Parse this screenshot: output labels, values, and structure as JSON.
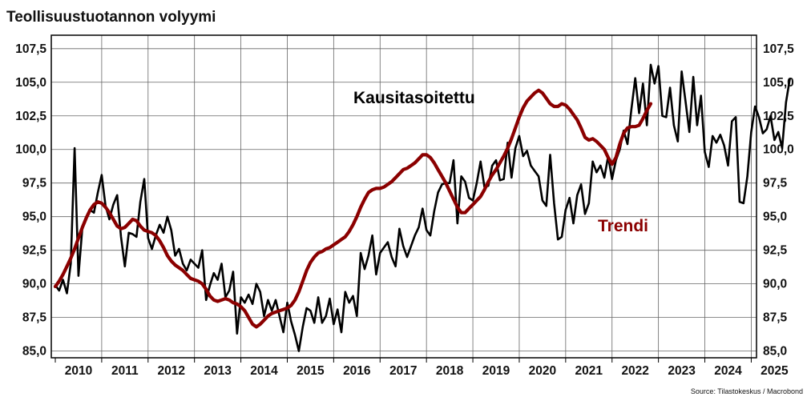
{
  "chart_data": {
    "type": "line",
    "title": "Teollisuustuotannon volyymi",
    "source": "Source: Tilastokeskus / Macrobond",
    "ylim": [
      84.5,
      108.5
    ],
    "y_ticks": [
      "85,0",
      "87,5",
      "90,0",
      "92,5",
      "95,0",
      "97,5",
      "100,0",
      "102,5",
      "105,0",
      "107,5"
    ],
    "y_tick_values": [
      85,
      87.5,
      90,
      92.5,
      95,
      97.5,
      100,
      102.5,
      105,
      107.5
    ],
    "x_ticks": [
      "2010",
      "2011",
      "2012",
      "2013",
      "2014",
      "2015",
      "2016",
      "2017",
      "2018",
      "2019",
      "2020",
      "2021",
      "2022",
      "2023",
      "2024",
      "2025"
    ],
    "x_start": "2010-01",
    "frequency": "monthly",
    "grid": true,
    "colors": {
      "seasonal": "#000000",
      "trend": "#8b0000",
      "grid": "#666666"
    },
    "annotations": [
      {
        "text": "Kausitasoitettu",
        "series": "seasonal"
      },
      {
        "text": "Trendi",
        "series": "trend"
      }
    ],
    "series": [
      {
        "name": "Kausitasoitettu",
        "values": [
          89.9,
          89.5,
          90.3,
          89.3,
          91.5,
          100.1,
          90.6,
          94.2,
          95.0,
          95.5,
          95.3,
          96.8,
          98.1,
          95.8,
          94.8,
          95.9,
          96.6,
          93.5,
          91.3,
          93.8,
          93.7,
          93.5,
          96.1,
          97.8,
          93.4,
          92.6,
          93.6,
          94.4,
          93.8,
          95.0,
          94.0,
          92.1,
          92.6,
          91.5,
          91.0,
          91.8,
          91.5,
          91.2,
          92.5,
          88.8,
          89.9,
          90.8,
          90.3,
          91.5,
          89.0,
          89.5,
          90.9,
          86.3,
          89.0,
          88.6,
          89.2,
          88.5,
          90.0,
          89.4,
          87.6,
          88.8,
          88.0,
          88.8,
          87.6,
          86.4,
          88.6,
          87.2,
          86.2,
          85.0,
          86.8,
          88.2,
          88.0,
          87.1,
          89.0,
          87.1,
          87.6,
          88.9,
          87.0,
          88.1,
          86.4,
          89.4,
          88.6,
          89.1,
          87.6,
          92.3,
          91.1,
          92.1,
          93.6,
          90.7,
          92.3,
          92.7,
          93.1,
          92.0,
          91.3,
          94.1,
          92.8,
          92.0,
          92.8,
          93.6,
          94.2,
          95.6,
          94.0,
          93.6,
          95.4,
          96.8,
          97.4,
          97.5,
          97.5,
          99.2,
          94.5,
          98.0,
          97.6,
          96.4,
          96.2,
          97.5,
          99.1,
          97.2,
          97.3,
          98.8,
          99.2,
          97.7,
          97.8,
          100.5,
          97.9,
          100.1,
          101.0,
          99.5,
          99.9,
          98.8,
          98.4,
          98.0,
          96.2,
          95.8,
          99.6,
          96.0,
          93.3,
          93.5,
          95.5,
          96.4,
          94.5,
          96.6,
          97.4,
          95.2,
          96.0,
          99.1,
          98.3,
          98.8,
          97.9,
          99.5,
          97.8,
          99.2,
          100.0,
          101.4,
          100.4,
          103.0,
          105.3,
          102.7,
          104.9,
          101.8,
          106.3,
          104.9,
          106.2,
          102.5,
          102.4,
          104.6,
          101.8,
          100.6,
          105.8,
          103.6,
          101.3,
          105.4,
          101.8,
          104.0,
          99.8,
          98.7,
          101.0,
          100.5,
          101.1,
          100.3,
          98.8,
          102.1,
          102.4,
          96.1,
          96.0,
          98.0,
          101.3,
          103.2,
          102.4,
          101.2,
          101.5,
          102.5,
          100.7,
          101.3,
          100.1,
          103.5,
          105.3
        ]
      },
      {
        "name": "Trendi",
        "values": [
          89.8,
          90.2,
          90.7,
          91.3,
          91.9,
          92.6,
          93.4,
          94.2,
          94.9,
          95.5,
          95.9,
          96.1,
          96.0,
          95.7,
          95.3,
          94.8,
          94.3,
          94.1,
          94.2,
          94.5,
          94.8,
          94.7,
          94.3,
          94.0,
          93.9,
          93.8,
          93.6,
          93.2,
          92.7,
          92.1,
          91.7,
          91.4,
          91.2,
          91.0,
          90.7,
          90.4,
          90.3,
          90.2,
          90.0,
          89.6,
          89.1,
          88.8,
          88.7,
          88.8,
          88.9,
          88.8,
          88.6,
          88.5,
          88.3,
          88.0,
          87.5,
          87.0,
          86.8,
          87.0,
          87.3,
          87.6,
          87.8,
          87.9,
          88.0,
          88.1,
          88.2,
          88.4,
          88.8,
          89.4,
          90.2,
          91.0,
          91.6,
          92.0,
          92.3,
          92.4,
          92.6,
          92.7,
          92.9,
          93.1,
          93.3,
          93.5,
          93.9,
          94.4,
          95.0,
          95.7,
          96.3,
          96.8,
          97.0,
          97.1,
          97.1,
          97.2,
          97.4,
          97.6,
          97.9,
          98.2,
          98.5,
          98.6,
          98.8,
          99.0,
          99.3,
          99.6,
          99.6,
          99.4,
          99.0,
          98.5,
          98.0,
          97.5,
          96.9,
          96.3,
          95.7,
          95.3,
          95.3,
          95.6,
          95.9,
          96.2,
          96.5,
          97.0,
          97.6,
          98.1,
          98.5,
          99.0,
          99.5,
          100.1,
          100.8,
          101.6,
          102.4,
          103.1,
          103.6,
          103.9,
          104.2,
          104.4,
          104.2,
          103.8,
          103.4,
          103.2,
          103.2,
          103.4,
          103.3,
          103.0,
          102.6,
          102.2,
          101.6,
          100.9,
          100.7,
          100.8,
          100.6,
          100.3,
          100.0,
          99.4,
          98.9,
          99.4,
          100.4,
          101.2,
          101.6,
          101.7,
          101.7,
          101.8,
          102.3,
          102.9,
          103.4
        ]
      }
    ]
  }
}
